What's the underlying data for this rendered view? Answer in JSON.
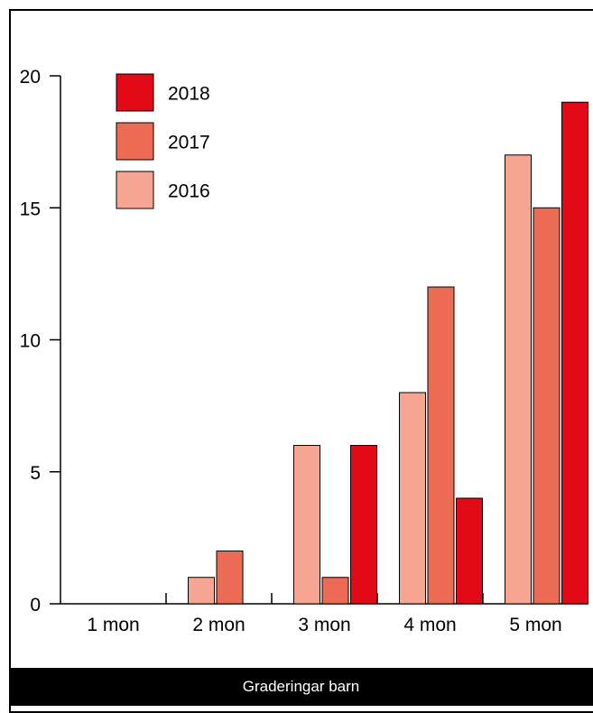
{
  "chart_data": {
    "type": "bar",
    "categories": [
      "1 mon",
      "2 mon",
      "3 mon",
      "4 mon",
      "5 mon"
    ],
    "series": [
      {
        "name": "2016",
        "color": "#f6a592",
        "values": [
          0,
          1,
          6,
          8,
          17
        ]
      },
      {
        "name": "2017",
        "color": "#ec6b55",
        "values": [
          0,
          2,
          1,
          12,
          15
        ]
      },
      {
        "name": "2018",
        "color": "#e30a17",
        "values": [
          0,
          0,
          6,
          4,
          19
        ]
      }
    ],
    "ylim": [
      0,
      20
    ],
    "yticks": [
      0,
      5,
      10,
      15,
      20
    ],
    "legend_order": [
      "2018",
      "2017",
      "2016"
    ],
    "legend_position": "top-left",
    "grid": false,
    "title": "",
    "xlabel": "",
    "ylabel": ""
  },
  "footer": {
    "caption": "Graderingar barn"
  }
}
